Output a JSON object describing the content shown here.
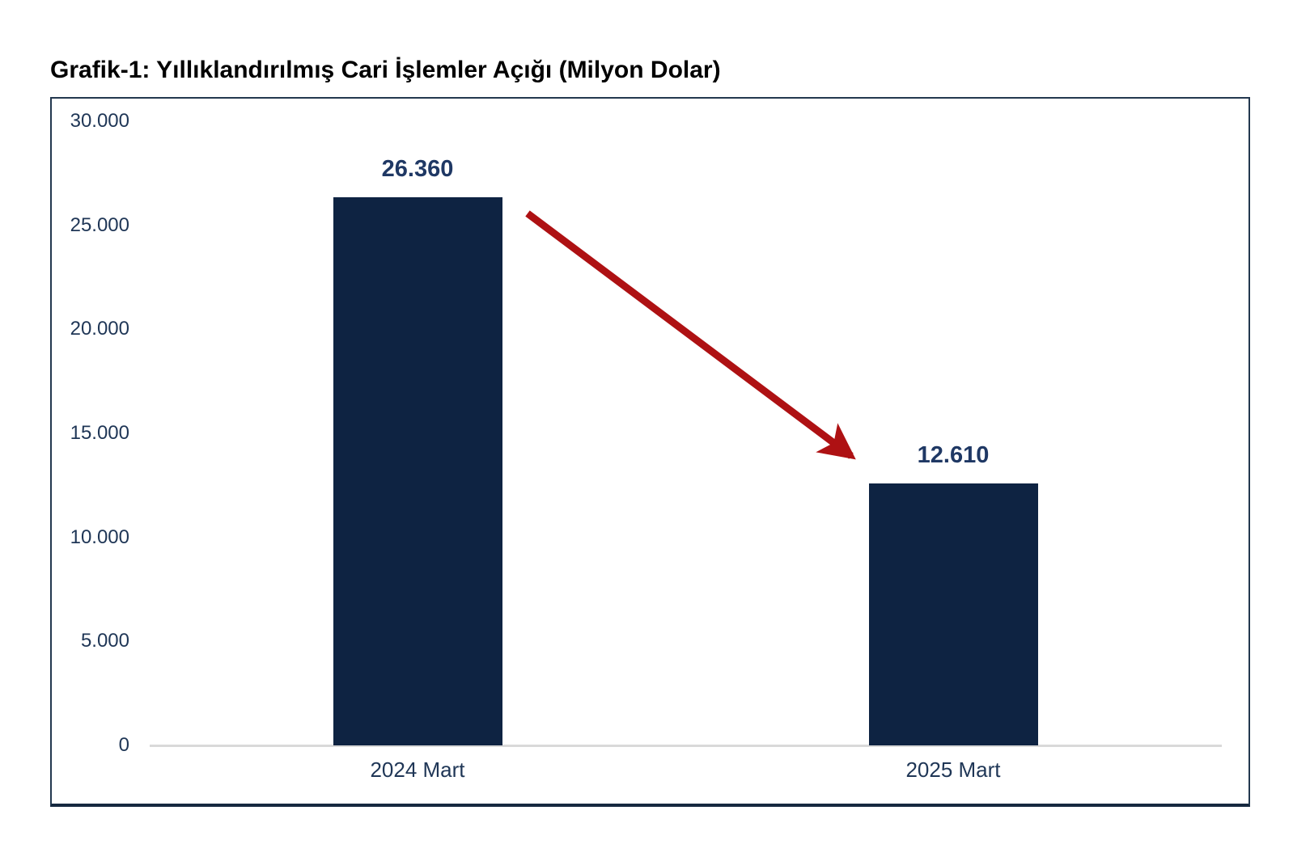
{
  "page": {
    "title": "Grafik-1: Yıllıklandırılmış Cari İşlemler Açığı (Milyon Dolar)"
  },
  "chart_data": {
    "type": "bar",
    "title": "Grafik-1: Yıllıklandırılmış Cari İşlemler Açığı (Milyon Dolar)",
    "categories": [
      "2024 Mart",
      "2025 Mart"
    ],
    "values": [
      26360,
      12610
    ],
    "value_labels": [
      "26.360",
      "12.610"
    ],
    "xlabel": "",
    "ylabel": "",
    "ylim": [
      0,
      30000
    ],
    "y_ticks": [
      {
        "value": 30000,
        "label": "30.000"
      },
      {
        "value": 25000,
        "label": "25.000"
      },
      {
        "value": 20000,
        "label": "20.000"
      },
      {
        "value": 15000,
        "label": "15.000"
      },
      {
        "value": 10000,
        "label": "10.000"
      },
      {
        "value": 5000,
        "label": "5.000"
      },
      {
        "value": 0,
        "label": "0"
      }
    ],
    "grid": false,
    "legend": "none",
    "annotations": [
      {
        "type": "arrow",
        "meaning": "decrease-from-2024-to-2025",
        "from_bar": 0,
        "to_bar": 1
      }
    ],
    "colors": {
      "bar": "#0e2342",
      "value_label": "#1f3864",
      "tick_label": "#1f3656",
      "axis_line": "#d9d9d9",
      "frame_border": "#23384f",
      "arrow": "#ae1113",
      "title": "#000000",
      "background": "#ffffff"
    }
  }
}
